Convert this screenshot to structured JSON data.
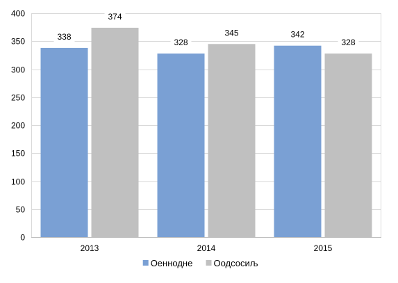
{
  "chart_data": {
    "type": "bar",
    "title": "",
    "xlabel": "",
    "ylabel": "",
    "categories": [
      "2013",
      "2014",
      "2015"
    ],
    "series": [
      {
        "name": "Оеннодне",
        "values": [
          338,
          328,
          342
        ],
        "color": "#7aa0d4"
      },
      {
        "name": "Оодсосиљ",
        "values": [
          374,
          345,
          328
        ],
        "color": "#c0c0c0"
      }
    ],
    "ylim": [
      0,
      400
    ],
    "yticks": [
      0,
      50,
      100,
      150,
      200,
      250,
      300,
      350,
      400
    ],
    "grid": true,
    "grid_color": "#d9d9d9",
    "legend_position": "bottom",
    "data_labels": true
  }
}
